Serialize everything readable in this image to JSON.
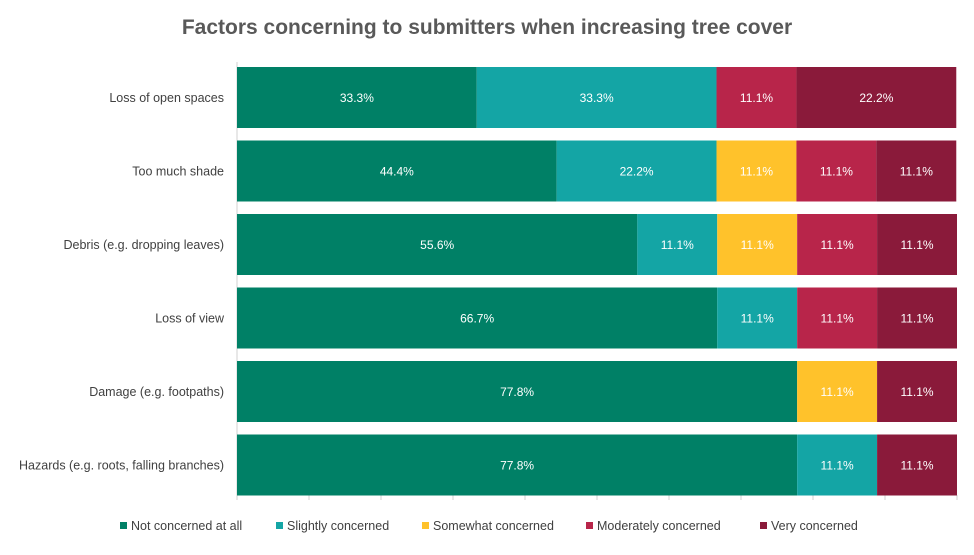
{
  "chart_data": {
    "type": "bar",
    "orientation": "horizontal",
    "stacked": true,
    "percent_stacked": true,
    "title": "Factors concerning to submitters when increasing tree cover",
    "xlim": [
      0,
      100
    ],
    "grid": false,
    "legend_position": "bottom",
    "categories": [
      "Loss of open spaces",
      "Too much shade",
      "Debris (e.g. dropping leaves)",
      "Loss of view",
      "Damage (e.g. footpaths)",
      "Hazards (e.g. roots, falling branches)"
    ],
    "series": [
      {
        "name": "Not concerned at all",
        "color": "#008066",
        "values": [
          33.3,
          44.4,
          55.6,
          66.7,
          77.8,
          77.8
        ],
        "labels": [
          "33.3%",
          "44.4%",
          "55.6%",
          "66.7%",
          "77.8%",
          "77.8%"
        ]
      },
      {
        "name": "Slightly concerned",
        "color": "#14A5A5",
        "values": [
          33.3,
          22.2,
          11.1,
          11.1,
          0,
          11.1
        ],
        "labels": [
          "33.3%",
          "22.2%",
          "11.1%",
          "11.1%",
          "",
          "11.1%"
        ]
      },
      {
        "name": "Somewhat concerned",
        "color": "#FFC22B",
        "values": [
          0,
          11.1,
          11.1,
          0,
          11.1,
          0
        ],
        "labels": [
          "",
          "11.1%",
          "11.1%",
          "",
          "11.1%",
          ""
        ]
      },
      {
        "name": "Moderately concerned",
        "color": "#B8254A",
        "values": [
          11.1,
          11.1,
          11.1,
          11.1,
          0,
          0
        ],
        "labels": [
          "11.1%",
          "11.1%",
          "11.1%",
          "11.1%",
          "",
          ""
        ]
      },
      {
        "name": "Very concerned",
        "color": "#8A1A3A",
        "values": [
          22.2,
          11.1,
          11.1,
          11.1,
          11.1,
          11.1
        ],
        "labels": [
          "22.2%",
          "11.1%",
          "11.1%",
          "11.1%",
          "11.1%",
          "11.1%"
        ]
      }
    ]
  }
}
